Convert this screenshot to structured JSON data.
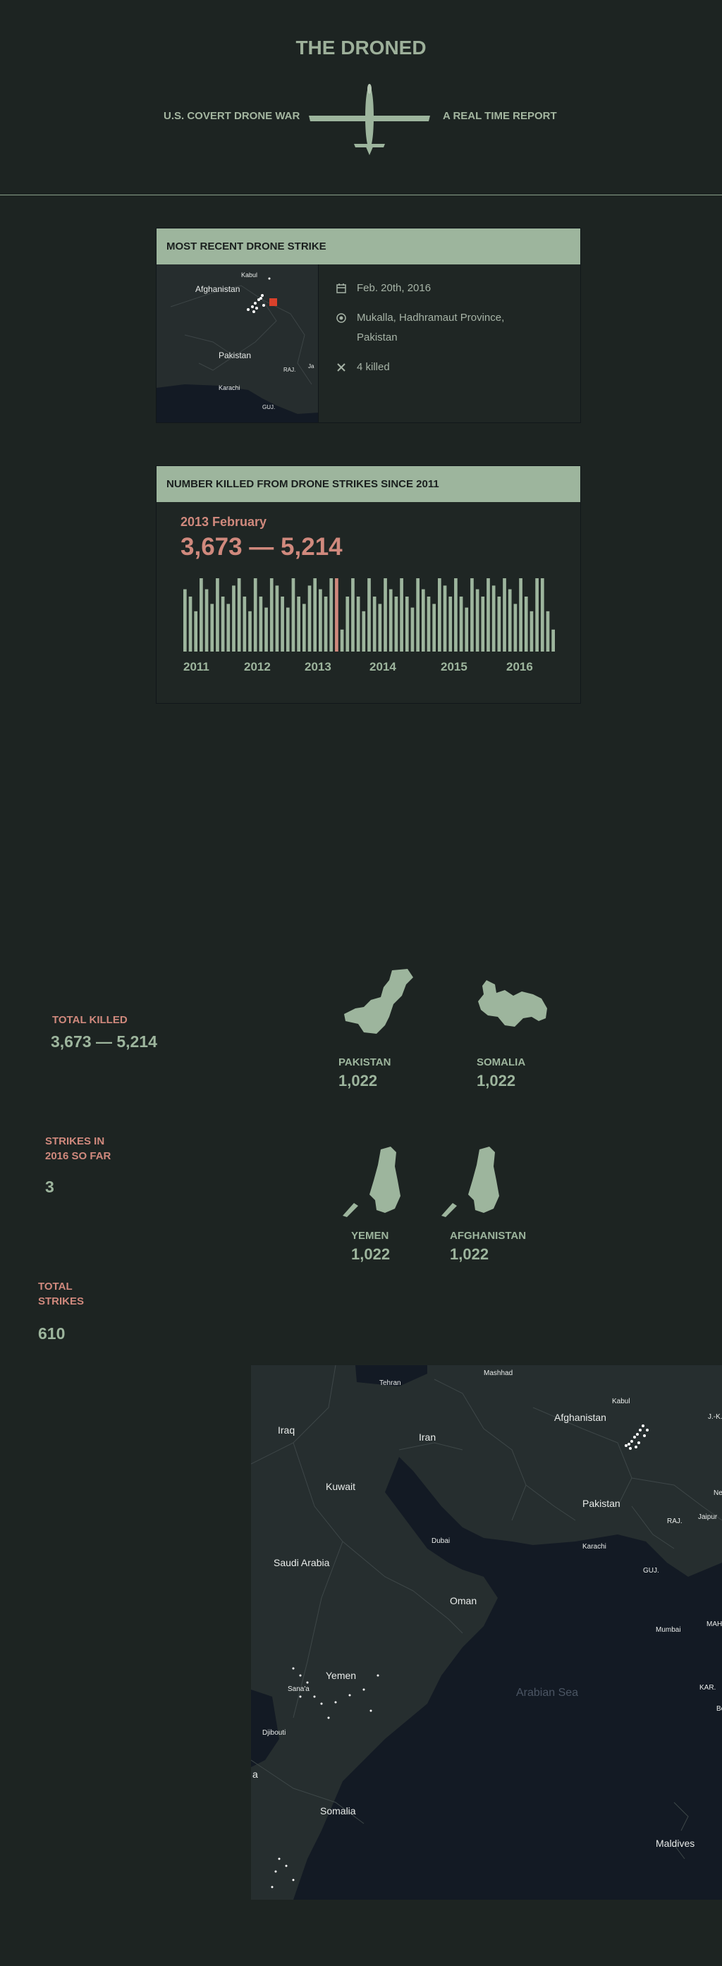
{
  "header": {
    "title": "THE DRONED",
    "left_subtitle": "U.S. COVERT DRONE WAR",
    "right_subtitle": "A REAL TIME REPORT"
  },
  "recent_strike": {
    "heading": "MOST RECENT DRONE STRIKE",
    "date": "Feb. 20th, 2016",
    "location_line1": "Mukalla, Hadhramaut Province,",
    "location_line2": "Pakistan",
    "killed": "4 killed",
    "map_labels": {
      "kabul": "Kabul",
      "afghanistan": "Afghanistan",
      "pakistan": "Pakistan",
      "raj": "RAJ.",
      "ja": "Ja",
      "karachi": "Karachi",
      "guj": "GUJ."
    }
  },
  "killed_chart": {
    "heading": "NUMBER KILLED FROM DRONE STRIKES SINCE 2011",
    "selected_label": "2013 February",
    "selected_value": "3,673 — 5,214",
    "highlight_color": "#d0897d",
    "bar_color": "#9db59d",
    "years": [
      "2011",
      "2012",
      "2013",
      "2014",
      "2015",
      "2016"
    ]
  },
  "chart_data": {
    "type": "bar",
    "title": "NUMBER KILLED FROM DRONE STRIKES SINCE 2011",
    "x_labels": [
      "2011",
      "2012",
      "2013",
      "2014",
      "2015",
      "2016"
    ],
    "highlight_index": 28,
    "values": [
      85,
      75,
      55,
      100,
      85,
      65,
      100,
      75,
      65,
      90,
      100,
      75,
      55,
      100,
      75,
      60,
      100,
      90,
      75,
      60,
      100,
      75,
      65,
      90,
      100,
      85,
      75,
      100,
      100,
      30,
      75,
      100,
      75,
      55,
      100,
      75,
      65,
      100,
      85,
      75,
      100,
      75,
      60,
      100,
      85,
      75,
      65,
      100,
      90,
      75,
      100,
      75,
      60,
      100,
      85,
      75,
      100,
      90,
      75,
      100,
      85,
      65,
      100,
      75,
      55,
      100,
      100,
      55,
      30
    ],
    "ylim": [
      0,
      100
    ]
  },
  "stats": {
    "total_killed_label": "TOTAL KILLED",
    "total_killed_value": "3,673 — 5,214",
    "strikes_2016_label_1": "STRIKES IN",
    "strikes_2016_label_2": "2016 SO FAR",
    "strikes_2016_value": "3",
    "total_strikes_label_1": "TOTAL",
    "total_strikes_label_2": "STRIKES",
    "total_strikes_value": "610"
  },
  "countries": [
    {
      "name": "PAKISTAN",
      "value": "1,022"
    },
    {
      "name": "SOMALIA",
      "value": "1,022"
    },
    {
      "name": "YEMEN",
      "value": "1,022"
    },
    {
      "name": "AFGHANISTAN",
      "value": "1,022"
    }
  ],
  "big_map": {
    "labels": {
      "tehran": "Tehran",
      "mashhad": "Mashhad",
      "iraq": "Iraq",
      "iran": "Iran",
      "afghanistan": "Afghanistan",
      "kabul": "Kabul",
      "jk": "J.-K.",
      "kuwait": "Kuwait",
      "pakistan": "Pakistan",
      "new": "New",
      "raj": "RAJ.",
      "jaipur": "Jaipur",
      "dubai": "Dubai",
      "karachi": "Karachi",
      "saudi_arabia": "Saudi Arabia",
      "guj": "GUJ.",
      "oman": "Oman",
      "mumbai": "Mumbai",
      "mah": "MAH",
      "arabian_sea": "Arabian Sea",
      "yemen": "Yemen",
      "sanaa": "Sana'a",
      "kar": "KAR.",
      "be": "Be",
      "djibouti": "Djibouti",
      "a": "a",
      "somalia": "Somalia",
      "maldives": "Maldives"
    }
  }
}
